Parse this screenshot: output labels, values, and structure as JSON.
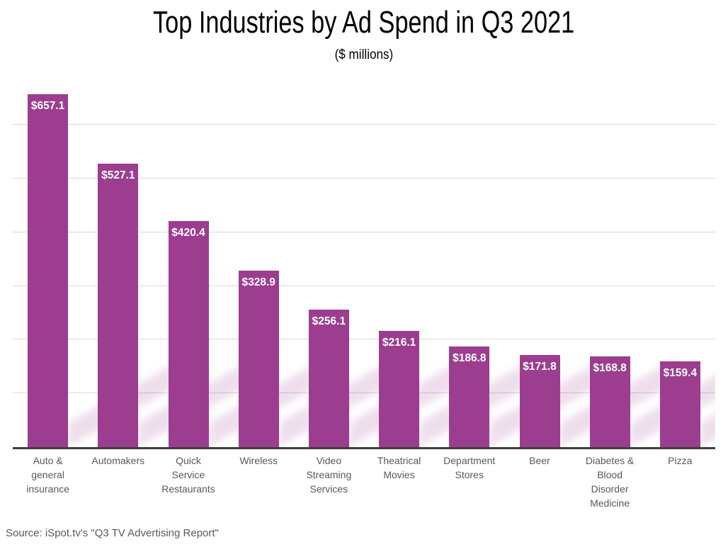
{
  "chart_data": {
    "type": "bar",
    "title": "Top Industries by Ad Spend in Q3 2021",
    "subtitle": "($ millions)",
    "source": "Source: iSpot.tv's \"Q3 TV Advertising Report\"",
    "categories": [
      "Auto & general insurance",
      "Automakers",
      "Quick Service Restaurants",
      "Wireless",
      "Video Streaming Services",
      "Theatrical Movies",
      "Department Stores",
      "Beer",
      "Diabetes & Blood Disorder Medicine",
      "Pizza"
    ],
    "values": [
      657.1,
      527.1,
      420.4,
      328.9,
      256.1,
      216.1,
      186.8,
      171.8,
      168.8,
      159.4
    ],
    "value_labels": [
      "$657.1",
      "$527.1",
      "$420.4",
      "$328.9",
      "$256.1",
      "$216.1",
      "$186.8",
      "$171.8",
      "$168.8",
      "$159.4"
    ],
    "xlabel": "",
    "ylabel": "",
    "ylim": [
      0,
      687
    ],
    "gridline_interval": 100,
    "grid": true,
    "legend_position": "none",
    "colors": {
      "bar": "#9C3D8F",
      "value_label": "#FFFFFF",
      "gridline": "#D9D9D9",
      "axis_line": "#3D3D3D",
      "category_label": "#595959",
      "title": "#000000",
      "subtitle": "#000000",
      "source": "#595959",
      "shadow": "rgba(156,61,143,0.17)",
      "background": "#FFFFFF"
    }
  }
}
